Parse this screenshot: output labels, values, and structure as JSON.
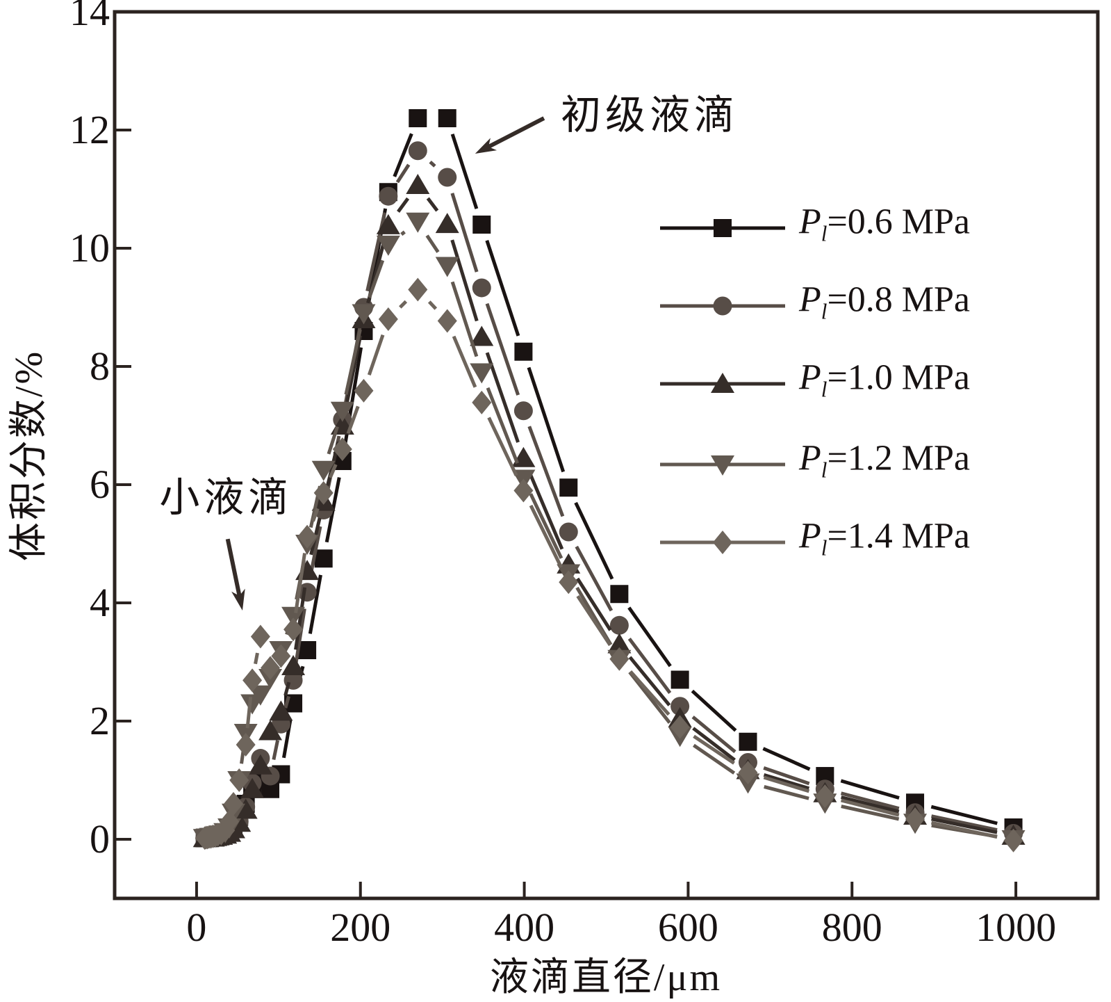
{
  "figure": {
    "background": "#ffffff",
    "axis_color": "#2b2320",
    "text_color": "#171212"
  },
  "chart_data": {
    "type": "line",
    "title": "",
    "xlabel": "液滴直径/μm",
    "ylabel": "体积分数/%",
    "xlim": [
      -100,
      1100
    ],
    "ylim": [
      -1,
      14
    ],
    "x_ticks": [
      0,
      200,
      400,
      600,
      800,
      1000
    ],
    "y_ticks": [
      0,
      2,
      4,
      6,
      8,
      10,
      12,
      14
    ],
    "grid": false,
    "legend_position": "upper right",
    "x": [
      10,
      11.6,
      13.3,
      15.3,
      17.5,
      20,
      23,
      26,
      30,
      35,
      40,
      45,
      52,
      60,
      68,
      78,
      90,
      103,
      118,
      135,
      155,
      178,
      204,
      234,
      270,
      306,
      348,
      399,
      454,
      516,
      590,
      673,
      767,
      877,
      997
    ],
    "series": [
      {
        "name": "Pl=0.6 MPa",
        "label_parts": {
          "symbol": "P",
          "subscript": "l",
          "rest": "=0.6 MPa"
        },
        "marker": "square",
        "color": "#191312",
        "values": [
          0.02,
          0.02,
          0.03,
          0.03,
          0.04,
          0.04,
          0.05,
          0.06,
          0.08,
          0.1,
          0.14,
          0.22,
          0.38,
          0.6,
          0.85,
          1.0,
          0.85,
          1.1,
          2.3,
          3.2,
          4.75,
          6.4,
          8.6,
          10.95,
          12.2,
          12.2,
          10.4,
          8.25,
          5.95,
          4.15,
          2.7,
          1.65,
          1.07,
          0.62,
          0.2
        ]
      },
      {
        "name": "Pl=0.8 MPa",
        "label_parts": {
          "symbol": "P",
          "subscript": "l",
          "rest": "=0.8 MPa"
        },
        "marker": "circle",
        "color": "#574d47",
        "values": [
          0.02,
          0.02,
          0.02,
          0.03,
          0.03,
          0.04,
          0.04,
          0.05,
          0.07,
          0.09,
          0.12,
          0.18,
          0.3,
          0.55,
          0.95,
          1.37,
          1.07,
          1.95,
          2.69,
          4.18,
          5.57,
          7.1,
          9.0,
          10.88,
          11.65,
          11.2,
          9.33,
          7.25,
          5.2,
          3.62,
          2.25,
          1.3,
          0.85,
          0.45,
          0.1
        ]
      },
      {
        "name": "Pl=1.0 MPa",
        "label_parts": {
          "symbol": "P",
          "subscript": "l",
          "rest": "=1.0 MPa"
        },
        "marker": "triangle-up",
        "color": "#352d29",
        "values": [
          0.02,
          0.02,
          0.02,
          0.03,
          0.03,
          0.03,
          0.04,
          0.05,
          0.06,
          0.08,
          0.11,
          0.17,
          0.28,
          0.5,
          0.85,
          1.25,
          1.83,
          2.16,
          2.93,
          4.54,
          5.71,
          7.0,
          8.8,
          10.39,
          11.07,
          10.41,
          8.5,
          6.45,
          4.65,
          3.3,
          2.05,
          1.17,
          0.78,
          0.4,
          0.06
        ]
      },
      {
        "name": "Pl=1.2 MPa",
        "label_parts": {
          "symbol": "P",
          "subscript": "l",
          "rest": "=1.2 MPa"
        },
        "marker": "triangle-down",
        "color": "#615850",
        "values": [
          0.02,
          0.02,
          0.03,
          0.03,
          0.04,
          0.04,
          0.05,
          0.06,
          0.08,
          0.12,
          0.2,
          0.45,
          1.0,
          1.8,
          2.3,
          2.45,
          2.73,
          3.2,
          3.78,
          5.0,
          6.25,
          7.25,
          8.9,
          10.06,
          10.45,
          9.7,
          7.9,
          6.1,
          4.5,
          3.05,
          1.75,
          0.96,
          0.62,
          0.28,
          0.0
        ]
      },
      {
        "name": "Pl=1.4 MPa",
        "label_parts": {
          "symbol": "P",
          "subscript": "l",
          "rest": "=1.4 MPa"
        },
        "marker": "diamond",
        "color": "#6e655c",
        "values": [
          0.02,
          0.03,
          0.03,
          0.04,
          0.04,
          0.05,
          0.06,
          0.08,
          0.1,
          0.15,
          0.3,
          0.6,
          1.0,
          1.6,
          2.69,
          3.43,
          2.9,
          3.1,
          3.55,
          5.12,
          5.86,
          6.6,
          7.59,
          8.8,
          9.3,
          8.77,
          7.39,
          5.9,
          4.35,
          3.05,
          1.9,
          1.13,
          0.73,
          0.34,
          -0.02
        ]
      }
    ],
    "annotations": [
      {
        "text": "初级液滴",
        "text_pos": [
          553,
          12.25
        ],
        "arrow_from": [
          424,
          12.2
        ],
        "arrow_to": [
          340,
          11.6
        ]
      },
      {
        "text": "小液滴",
        "text_pos": [
          36,
          5.78
        ],
        "arrow_from": [
          38,
          5.08
        ],
        "arrow_to": [
          56,
          3.87
        ]
      }
    ]
  }
}
